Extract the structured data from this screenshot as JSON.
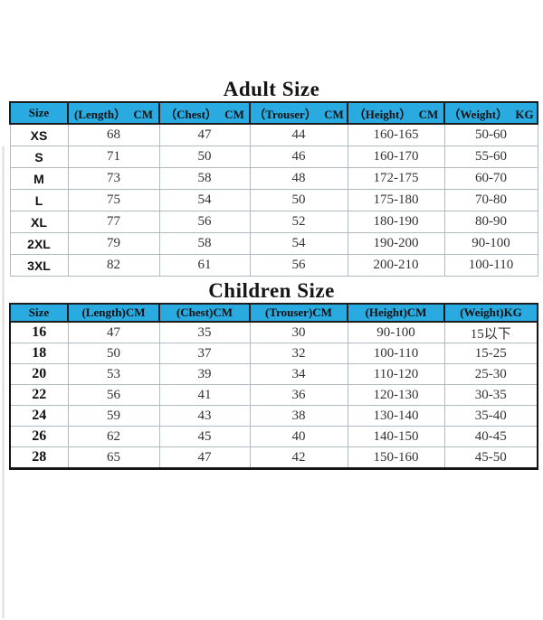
{
  "colors": {
    "header_blue": "#29abe2",
    "border_black": "#1c1c1c",
    "grid_gray": "#b3b9c3",
    "background": "#ffffff"
  },
  "adult": {
    "title": "Adult Size",
    "headers": [
      "Size",
      "(Length） CM",
      "（Chest） CM",
      "（Trouser） CM",
      "（Height） CM",
      "（Weight） KG"
    ],
    "rows": [
      [
        "XS",
        "68",
        "47",
        "44",
        "160-165",
        "50-60"
      ],
      [
        "S",
        "71",
        "50",
        "46",
        "160-170",
        "55-60"
      ],
      [
        "M",
        "73",
        "58",
        "48",
        "172-175",
        "60-70"
      ],
      [
        "L",
        "75",
        "54",
        "50",
        "175-180",
        "70-80"
      ],
      [
        "XL",
        "77",
        "56",
        "52",
        "180-190",
        "80-90"
      ],
      [
        "2XL",
        "79",
        "58",
        "54",
        "190-200",
        "90-100"
      ],
      [
        "3XL",
        "82",
        "61",
        "56",
        "200-210",
        "100-110"
      ]
    ]
  },
  "children": {
    "title": "Children Size",
    "headers": [
      "Size",
      "(Length)CM",
      "(Chest)CM",
      "(Trouser)CM",
      "(Height)CM",
      "(Weight)KG"
    ],
    "rows": [
      [
        "16",
        "47",
        "35",
        "30",
        "90-100",
        "15以下"
      ],
      [
        "18",
        "50",
        "37",
        "32",
        "100-110",
        "15-25"
      ],
      [
        "20",
        "53",
        "39",
        "34",
        "110-120",
        "25-30"
      ],
      [
        "22",
        "56",
        "41",
        "36",
        "120-130",
        "30-35"
      ],
      [
        "24",
        "59",
        "43",
        "38",
        "130-140",
        "35-40"
      ],
      [
        "26",
        "62",
        "45",
        "40",
        "140-150",
        "40-45"
      ],
      [
        "28",
        "65",
        "47",
        "42",
        "150-160",
        "45-50"
      ]
    ]
  }
}
